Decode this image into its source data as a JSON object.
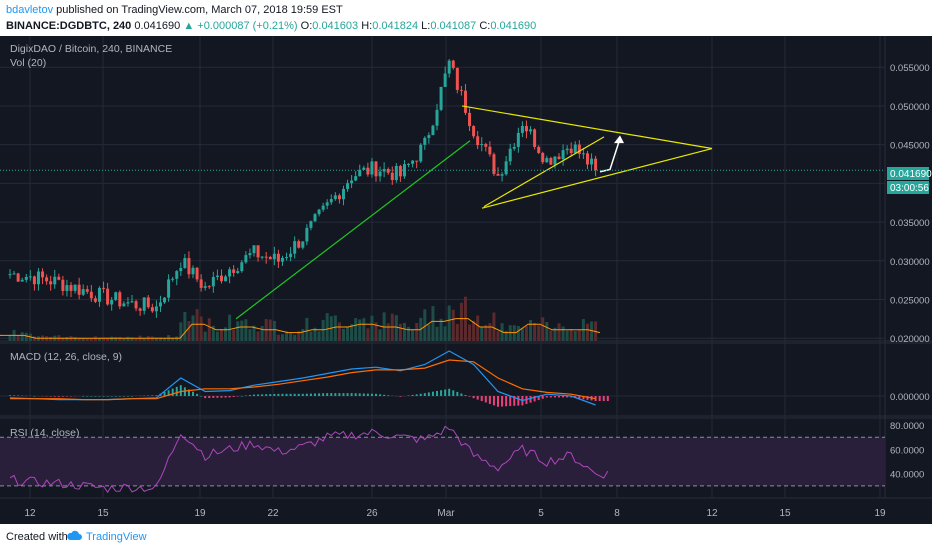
{
  "header": {
    "author": "bdavletov",
    "published": "published on TradingView.com, March 07, 2018 19:59 EST",
    "symbol": "BINANCE:DGDBTC, 240",
    "last": "0.041690",
    "change": "+0.000087 (+0.21%)",
    "open_label": "O:",
    "open": "0.041603",
    "high_label": "H:",
    "high": "0.041824",
    "low_label": "L:",
    "low": "0.041087",
    "close_label": "C:",
    "close": "0.041690"
  },
  "colors": {
    "background": "#131722",
    "up": "#26a69a",
    "down": "#ef5350",
    "trend_yellow": "#e8e800",
    "support_green": "#21c521",
    "macd_line": "#2196f3",
    "signal_line": "#ff6d00",
    "rsi_line": "#ab47bc",
    "grid": "#242a38"
  },
  "price_panel": {
    "title": "DigixDAO / Bitcoin, 240, BINANCE",
    "volume_label": "Vol (20)",
    "last_price_tag": "0.041690",
    "countdown_tag": "03:00:56"
  },
  "macd_panel": {
    "label": "MACD (12, 26, close, 9)"
  },
  "rsi_panel": {
    "label": "RSI (14, close)"
  },
  "footer": {
    "created_with": "Created with",
    "brand": "TradingView"
  },
  "chart_data": [
    {
      "type": "candlestick",
      "title": "DigixDAO / Bitcoin, 240, BINANCE",
      "ylim": [
        0.0199,
        0.058
      ],
      "y_ticks": [
        "0.055000",
        "0.050000",
        "0.045000",
        "0.040000",
        "0.035000",
        "0.030000",
        "0.025000",
        "0.020000"
      ],
      "x_ticks": [
        "12",
        "15",
        "19",
        "22",
        "26",
        "Mar",
        "5",
        "8",
        "12",
        "15",
        "19"
      ],
      "series": [
        {
          "name": "DGDBTC",
          "points": [
            {
              "date": "Feb 11",
              "close": 0.0283
            },
            {
              "date": "Feb 12",
              "close": 0.0279
            },
            {
              "date": "Feb 13",
              "close": 0.0272
            },
            {
              "date": "Feb 14",
              "close": 0.0262
            },
            {
              "date": "Feb 15",
              "close": 0.0252
            },
            {
              "date": "Feb 16",
              "close": 0.0244
            },
            {
              "date": "Feb 17",
              "close": 0.024
            },
            {
              "date": "Feb 18",
              "close": 0.03
            },
            {
              "date": "Feb 19",
              "close": 0.0265
            },
            {
              "date": "Feb 20",
              "close": 0.029
            },
            {
              "date": "Feb 21",
              "close": 0.031
            },
            {
              "date": "Feb 22",
              "close": 0.03
            },
            {
              "date": "Feb 23",
              "close": 0.033
            },
            {
              "date": "Feb 24",
              "close": 0.037
            },
            {
              "date": "Feb 25",
              "close": 0.041
            },
            {
              "date": "Feb 26",
              "close": 0.042
            },
            {
              "date": "Feb 27",
              "close": 0.041
            },
            {
              "date": "Feb 28",
              "close": 0.045
            },
            {
              "date": "Mar 01",
              "close": 0.0555
            },
            {
              "date": "Mar 02",
              "close": 0.047
            },
            {
              "date": "Mar 03",
              "close": 0.041
            },
            {
              "date": "Mar 04",
              "close": 0.048
            },
            {
              "date": "Mar 05",
              "close": 0.043
            },
            {
              "date": "Mar 06",
              "close": 0.045
            },
            {
              "date": "Mar 07",
              "close": 0.0417
            }
          ]
        }
      ]
    },
    {
      "type": "bar",
      "title": "Vol (20)",
      "note": "volume histogram beneath price",
      "series": [
        {
          "name": "Volume",
          "values": [
            2,
            1,
            1,
            1,
            1,
            1,
            1,
            6,
            4,
            5,
            4,
            3,
            4,
            5,
            6,
            5,
            4,
            7,
            8,
            5,
            3,
            6,
            4,
            4,
            3
          ]
        }
      ]
    },
    {
      "type": "line",
      "title": "MACD (12, 26, close, 9)",
      "y_ticks": [
        "0.000000"
      ],
      "series": [
        {
          "name": "MACD",
          "values": [
            -0.0002,
            -0.0003,
            -0.0004,
            -0.0004,
            -0.0004,
            -0.0003,
            -0.0002,
            0.002,
            0.0005,
            0.0006,
            0.0012,
            0.0016,
            0.002,
            0.0025,
            0.003,
            0.0032,
            0.0028,
            0.0035,
            0.005,
            0.0035,
            0.0005,
            -0.0005,
            0.0002,
            0.0,
            -0.001
          ]
        },
        {
          "name": "Signal",
          "values": [
            -0.0003,
            -0.0003,
            -0.0003,
            -0.0004,
            -0.0004,
            -0.0003,
            -0.0003,
            0.0005,
            0.0008,
            0.0008,
            0.001,
            0.0013,
            0.0017,
            0.0021,
            0.0026,
            0.0029,
            0.0029,
            0.0031,
            0.004,
            0.0038,
            0.002,
            0.0008,
            0.0004,
            0.0002,
            -0.0003
          ]
        }
      ]
    },
    {
      "type": "line",
      "title": "RSI (14, close)",
      "ylim": [
        20,
        85
      ],
      "y_ticks": [
        "80.0000",
        "60.0000",
        "40.0000"
      ],
      "bands": [
        70,
        30
      ],
      "series": [
        {
          "name": "RSI",
          "values": [
            35,
            33,
            32,
            30,
            28,
            29,
            28,
            75,
            55,
            60,
            65,
            58,
            62,
            70,
            72,
            74,
            70,
            68,
            78,
            55,
            45,
            60,
            50,
            55,
            40
          ]
        }
      ]
    }
  ]
}
